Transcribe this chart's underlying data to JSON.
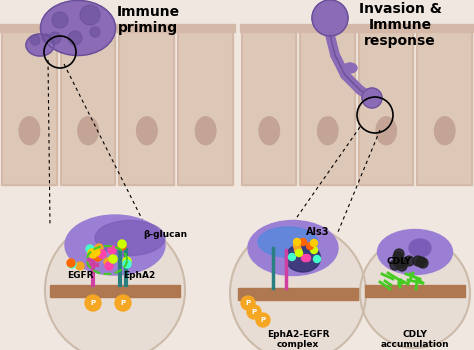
{
  "bg_color": "#f0e8e0",
  "cell_wall_color": "#d4b8a8",
  "cell_interior": "#ddc8b8",
  "nucleus_color": "#c4a595",
  "fungal_cell_color": "#8b6bb5",
  "fungal_cell_dark": "#6a4f9a",
  "membrane_color": "#b07850",
  "zoom_circle_color": "#e8ddd5",
  "zoom_circle_outline": "#ccbbaa",
  "title_left": "Immune\npriming",
  "title_right": "Invasion &\nImmune\nresponse",
  "label_betaglucan": "β-glucan",
  "label_egfr": "EGFR",
  "label_epha2": "EphA2",
  "label_als3": "Als3",
  "label_epha2egfr": "EphA2-EGFR\ncomplex",
  "label_cdly": "CDLY",
  "label_cdly_acc": "CDLY\naccumulation",
  "purple_light": "#9b7fd4",
  "purple_mid": "#7b5cb8",
  "purple_dark": "#5a3f9a",
  "teal_color": "#2a8080",
  "magenta_color": "#d040a0",
  "orange_color": "#f5a623",
  "green_color": "#44cc22",
  "blue_color": "#5588dd",
  "dark_color": "#222222",
  "white_color": "#ffffff"
}
